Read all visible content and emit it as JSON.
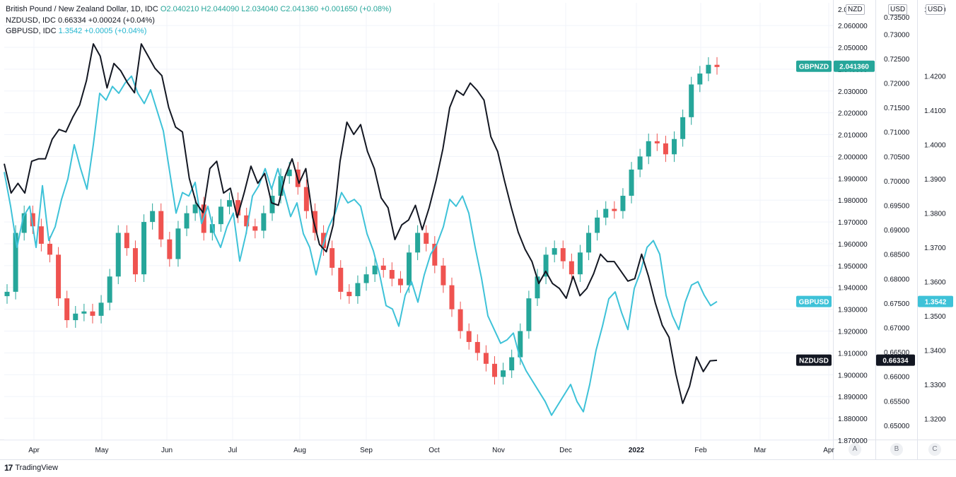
{
  "legend": {
    "main": {
      "name": "British Pound / New Zealand Dollar, 1D, IDC",
      "o": "O2.040210",
      "h": "H2.044090",
      "l": "L2.034040",
      "c": "C2.041360",
      "chg": "+0.001650 (+0.08%)"
    },
    "nzd": {
      "name": "NZDUSD, IDC",
      "value": "0.66334",
      "chg": "+0.00024 (+0.04%)"
    },
    "gbp": {
      "name": "GBPUSD, IDC",
      "value": "1.3542",
      "chg": "+0.0005 (+0.04%)"
    }
  },
  "scales": {
    "units": [
      "NZD",
      "USD",
      "USD"
    ],
    "letters": [
      "A",
      "B",
      "C"
    ]
  },
  "footer": {
    "brand": "TradingView",
    "logo": "17"
  },
  "colors": {
    "up": "#26a69a",
    "down": "#ef5350",
    "gbpusd": "#3ec2d8",
    "nzdusd": "#131722",
    "grid": "#f0f3fa"
  },
  "chart_data": {
    "type": "line",
    "x_labels": [
      "Apr",
      "May",
      "Jun",
      "Jul",
      "Aug",
      "Sep",
      "Oct",
      "Nov",
      "Dec",
      "2022",
      "Feb",
      "Mar",
      "Apr"
    ],
    "axes": {
      "gbpnzd": {
        "ticks": [
          "2.060000",
          "2.050000",
          "2.040000",
          "2.030000",
          "2.020000",
          "2.010000",
          "2.000000",
          "1.990000",
          "1.980000",
          "1.970000",
          "1.960000",
          "1.950000",
          "1.940000",
          "1.930000",
          "1.920000",
          "1.910000",
          "1.900000",
          "1.890000",
          "1.880000",
          "1.870000"
        ],
        "top_partial": "2.0",
        "range": [
          1.8703,
          2.0704
        ]
      },
      "nzdusd": {
        "ticks": [
          "0.73000",
          "0.72500",
          "0.72000",
          "0.71500",
          "0.71000",
          "0.70500",
          "0.70000",
          "0.69500",
          "0.69000",
          "0.68500",
          "0.68000",
          "0.67500",
          "0.67000",
          "0.66500",
          "0.66000",
          "0.65500",
          "0.65000"
        ],
        "top_partial": "0.73500",
        "range": [
          0.6471,
          0.7364
        ]
      },
      "gbpusd": {
        "ticks": [
          "1.4200",
          "1.4100",
          "1.4000",
          "1.3900",
          "1.3800",
          "1.3700",
          "1.3600",
          "1.3500",
          "1.3400",
          "1.3300",
          "1.3200"
        ],
        "top_partial": "1.4200",
        "range": [
          1.3139,
          1.4414
        ]
      }
    },
    "tags": [
      {
        "name": "GBPNZD",
        "value": "2.041360",
        "color": "#26a69a",
        "level": 2.04136,
        "axis": "gbpnzd"
      },
      {
        "name": "GBPUSD",
        "value": "1.3542",
        "color": "#3ec2d8",
        "level": 1.3542,
        "axis": "gbpusd"
      },
      {
        "name": "NZDUSD",
        "value": "0.66334",
        "color": "#131722",
        "level": 0.66334,
        "axis": "nzdusd"
      }
    ],
    "series": [
      {
        "name": "GBPNZD",
        "style": "candles",
        "axis": "gbpnzd",
        "closes": [
          1.938,
          1.965,
          1.974,
          1.968,
          1.96,
          1.955,
          1.935,
          1.925,
          1.928,
          1.929,
          1.927,
          1.933,
          1.945,
          1.965,
          1.958,
          1.946,
          1.97,
          1.975,
          1.962,
          1.953,
          1.967,
          1.974,
          1.978,
          1.965,
          1.969,
          1.977,
          1.98,
          1.973,
          1.968,
          1.966,
          1.974,
          1.982,
          1.991,
          1.994,
          1.986,
          1.975,
          1.965,
          1.958,
          1.949,
          1.938,
          1.936,
          1.942,
          1.946,
          1.95,
          1.948,
          1.944,
          1.941,
          1.956,
          1.965,
          1.96,
          1.95,
          1.941,
          1.93,
          1.92,
          1.915,
          1.91,
          1.905,
          1.899,
          1.902,
          1.908,
          1.92,
          1.935,
          1.945,
          1.955,
          1.958,
          1.952,
          1.946,
          1.956,
          1.965,
          1.972,
          1.976,
          1.975,
          1.982,
          1.994,
          2.0,
          2.007,
          2.006,
          2.001,
          2.008,
          2.018,
          2.033,
          2.038,
          2.042,
          2.041
        ]
      },
      {
        "name": "NZDUSD",
        "style": "line",
        "axis": "nzdusd",
        "values": [
          0.7035,
          0.6975,
          0.6995,
          0.6975,
          0.704,
          0.7045,
          0.7045,
          0.7085,
          0.7105,
          0.71,
          0.713,
          0.7155,
          0.7205,
          0.728,
          0.7255,
          0.719,
          0.724,
          0.7225,
          0.72,
          0.718,
          0.728,
          0.7255,
          0.723,
          0.7215,
          0.715,
          0.711,
          0.71,
          0.7005,
          0.6955,
          0.6935,
          0.7025,
          0.704,
          0.6975,
          0.6985,
          0.6925,
          0.6975,
          0.703,
          0.6995,
          0.7015,
          0.6955,
          0.695,
          0.701,
          0.7045,
          0.6995,
          0.7025,
          0.6925,
          0.687,
          0.6855,
          0.691,
          0.704,
          0.712,
          0.7095,
          0.7115,
          0.706,
          0.7025,
          0.6965,
          0.6945,
          0.688,
          0.691,
          0.692,
          0.695,
          0.69,
          0.6945,
          0.7,
          0.7065,
          0.715,
          0.7185,
          0.7175,
          0.72,
          0.7185,
          0.7165,
          0.709,
          0.706,
          0.7,
          0.6945,
          0.6895,
          0.686,
          0.6835,
          0.679,
          0.6815,
          0.679,
          0.678,
          0.676,
          0.6805,
          0.6765,
          0.678,
          0.681,
          0.685,
          0.6835,
          0.6835,
          0.6815,
          0.6795,
          0.68,
          0.685,
          0.6805,
          0.675,
          0.6705,
          0.668,
          0.6605,
          0.6545,
          0.658,
          0.664,
          0.661,
          0.6632,
          0.6633
        ]
      },
      {
        "name": "GBPUSD",
        "style": "line",
        "axis": "gbpusd",
        "values": [
          1.392,
          1.382,
          1.37,
          1.379,
          1.382,
          1.37,
          1.388,
          1.372,
          1.376,
          1.384,
          1.39,
          1.4,
          1.393,
          1.387,
          1.4,
          1.415,
          1.413,
          1.417,
          1.415,
          1.418,
          1.42,
          1.415,
          1.412,
          1.416,
          1.41,
          1.404,
          1.392,
          1.38,
          1.386,
          1.385,
          1.389,
          1.377,
          1.382,
          1.374,
          1.37,
          1.376,
          1.38,
          1.366,
          1.374,
          1.385,
          1.388,
          1.393,
          1.387,
          1.393,
          1.386,
          1.379,
          1.383,
          1.374,
          1.37,
          1.362,
          1.37,
          1.376,
          1.38,
          1.386,
          1.383,
          1.384,
          1.382,
          1.374,
          1.369,
          1.362,
          1.353,
          1.352,
          1.347,
          1.356,
          1.36,
          1.354,
          1.362,
          1.368,
          1.371,
          1.376,
          1.384,
          1.382,
          1.385,
          1.38,
          1.37,
          1.361,
          1.35,
          1.346,
          1.342,
          1.343,
          1.345,
          1.338,
          1.334,
          1.331,
          1.328,
          1.325,
          1.321,
          1.324,
          1.327,
          1.33,
          1.325,
          1.322,
          1.33,
          1.34,
          1.347,
          1.355,
          1.357,
          1.351,
          1.346,
          1.358,
          1.363,
          1.37,
          1.372,
          1.368,
          1.356,
          1.35,
          1.346,
          1.354,
          1.359,
          1.36,
          1.356,
          1.353,
          1.3542
        ]
      }
    ]
  }
}
